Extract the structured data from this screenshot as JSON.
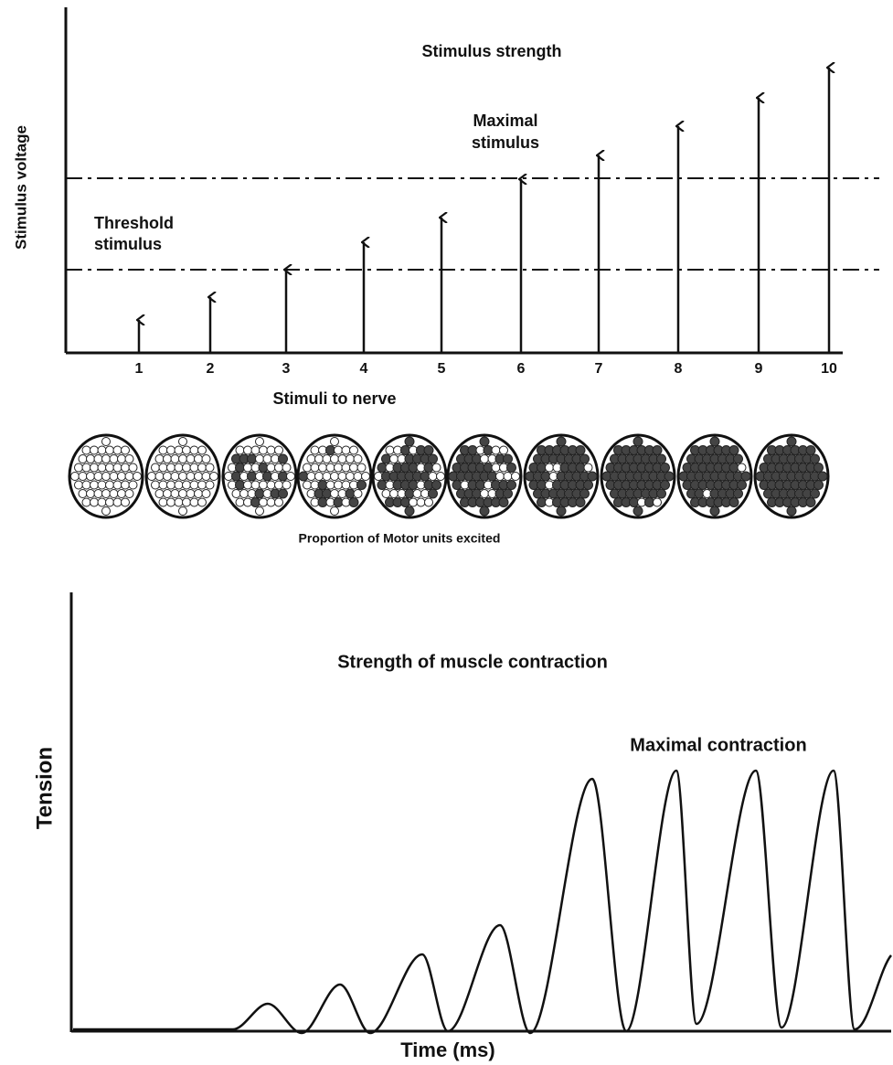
{
  "top_panel": {
    "title": "Stimulus strength",
    "y_label": "Stimulus voltage",
    "x_label": "Stimuli to nerve",
    "x_ticks": [
      "1",
      "2",
      "3",
      "4",
      "5",
      "6",
      "7",
      "8",
      "9",
      "10"
    ],
    "threshold_label": [
      "Threshold",
      "stimulus"
    ],
    "maximal_label": [
      "Maximal",
      "stimulus"
    ]
  },
  "motor_units": {
    "caption": "Proportion of Motor units excited"
  },
  "bottom_panel": {
    "title": "Strength of muscle contraction",
    "annotation": "Maximal contraction",
    "y_label": "Tension",
    "x_label": "Time (ms)"
  }
}
